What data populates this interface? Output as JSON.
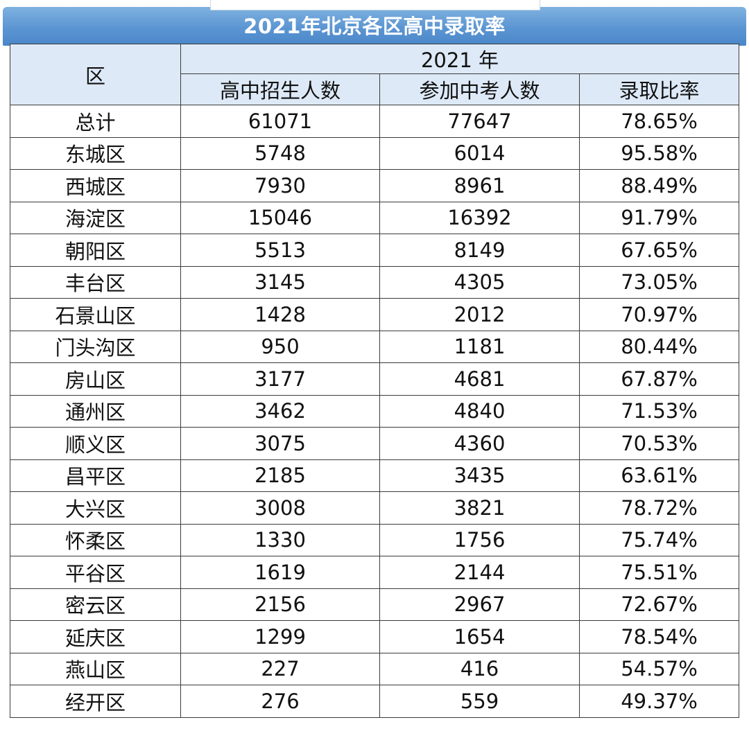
{
  "title": "2021年北京各区高中录取率",
  "header": {
    "district": "区",
    "year": "2021 年",
    "enrolled": "高中招生人数",
    "examinees": "参加中考人数",
    "rate": "录取比率"
  },
  "colors": {
    "title_bar": "#5b95d2",
    "header_bg": "#dde9f7",
    "rate_text": "#b0161b"
  },
  "rows": [
    {
      "district": "总计",
      "enrolled": "61071",
      "examinees": "77647",
      "rate": "78.65%"
    },
    {
      "district": "东城区",
      "enrolled": "5748",
      "examinees": "6014",
      "rate": "95.58%"
    },
    {
      "district": "西城区",
      "enrolled": "7930",
      "examinees": "8961",
      "rate": "88.49%"
    },
    {
      "district": "海淀区",
      "enrolled": "15046",
      "examinees": "16392",
      "rate": "91.79%"
    },
    {
      "district": "朝阳区",
      "enrolled": "5513",
      "examinees": "8149",
      "rate": "67.65%"
    },
    {
      "district": "丰台区",
      "enrolled": "3145",
      "examinees": "4305",
      "rate": "73.05%"
    },
    {
      "district": "石景山区",
      "enrolled": "1428",
      "examinees": "2012",
      "rate": "70.97%"
    },
    {
      "district": "门头沟区",
      "enrolled": "950",
      "examinees": "1181",
      "rate": "80.44%"
    },
    {
      "district": "房山区",
      "enrolled": "3177",
      "examinees": "4681",
      "rate": "67.87%"
    },
    {
      "district": "通州区",
      "enrolled": "3462",
      "examinees": "4840",
      "rate": "71.53%"
    },
    {
      "district": "顺义区",
      "enrolled": "3075",
      "examinees": "4360",
      "rate": "70.53%"
    },
    {
      "district": "昌平区",
      "enrolled": "2185",
      "examinees": "3435",
      "rate": "63.61%"
    },
    {
      "district": "大兴区",
      "enrolled": "3008",
      "examinees": "3821",
      "rate": "78.72%"
    },
    {
      "district": "怀柔区",
      "enrolled": "1330",
      "examinees": "1756",
      "rate": "75.74%"
    },
    {
      "district": "平谷区",
      "enrolled": "1619",
      "examinees": "2144",
      "rate": "75.51%"
    },
    {
      "district": "密云区",
      "enrolled": "2156",
      "examinees": "2967",
      "rate": "72.67%"
    },
    {
      "district": "延庆区",
      "enrolled": "1299",
      "examinees": "1654",
      "rate": "78.54%"
    },
    {
      "district": "燕山区",
      "enrolled": "227",
      "examinees": "416",
      "rate": "54.57%"
    },
    {
      "district": "经开区",
      "enrolled": "276",
      "examinees": "559",
      "rate": "49.37%"
    }
  ]
}
